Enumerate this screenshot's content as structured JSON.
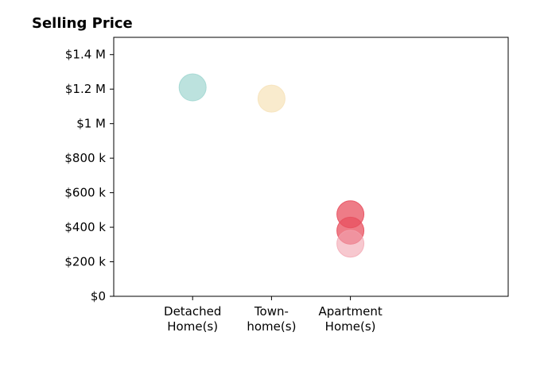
{
  "chart_data": {
    "type": "scatter",
    "title": "Selling Price",
    "xlabel": "",
    "ylabel": "",
    "categories": [
      [
        "Detached",
        "Home(s)"
      ],
      [
        "Town-",
        "home(s)"
      ],
      [
        "Apartment",
        "Home(s)"
      ]
    ],
    "xlim": [
      -1,
      4
    ],
    "ylim": [
      0,
      1500000
    ],
    "yticks": [
      0,
      200000,
      400000,
      600000,
      800000,
      1000000,
      1200000,
      1400000
    ],
    "ytick_labels": [
      "$0",
      "$200 k",
      "$400 k",
      "$600 k",
      "$800 k",
      "$1 M",
      "$1.2 M",
      "$1.4 M"
    ],
    "grid": false,
    "legend": "none",
    "points": [
      {
        "x": 0,
        "category": "Detached Home(s)",
        "y": 1210000,
        "color": "#9fd6d0",
        "opacity": 0.7
      },
      {
        "x": 1,
        "category": "Town-home(s)",
        "y": 1145000,
        "color": "#f6e2b8",
        "opacity": 0.7
      },
      {
        "x": 2,
        "category": "Apartment Home(s)",
        "y": 475000,
        "color": "#e8505f",
        "opacity": 0.75
      },
      {
        "x": 2,
        "category": "Apartment Home(s)",
        "y": 380000,
        "color": "#e8505f",
        "opacity": 0.75
      },
      {
        "x": 2,
        "category": "Apartment Home(s)",
        "y": 305000,
        "color": "#f2a3af",
        "opacity": 0.6
      }
    ]
  }
}
